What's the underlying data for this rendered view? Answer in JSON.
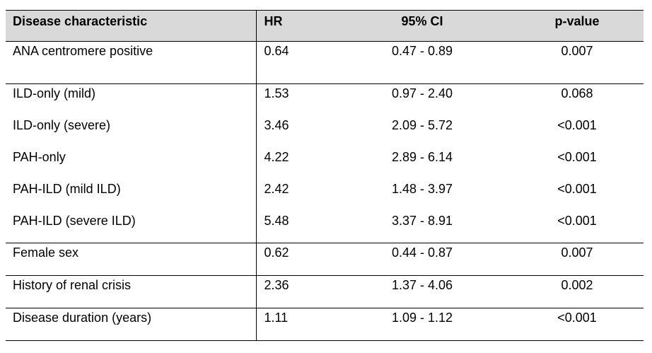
{
  "table": {
    "headers": {
      "characteristic": "Disease characteristic",
      "hr": "HR",
      "ci": "95% CI",
      "p": "p-value"
    },
    "rows": [
      {
        "characteristic": "ANA centromere positive",
        "hr": "0.64",
        "ci": "0.47 - 0.89",
        "p": "0.007"
      },
      {
        "characteristic": "ILD-only (mild)",
        "hr": "1.53",
        "ci": "0.97 - 2.40",
        "p": "0.068"
      },
      {
        "characteristic": "ILD-only (severe)",
        "hr": "3.46",
        "ci": "2.09 - 5.72",
        "p": "<0.001"
      },
      {
        "characteristic": "PAH-only",
        "hr": "4.22",
        "ci": "2.89 - 6.14",
        "p": "<0.001"
      },
      {
        "characteristic": "PAH-ILD (mild ILD)",
        "hr": "2.42",
        "ci": "1.48 - 3.97",
        "p": "<0.001"
      },
      {
        "characteristic": "PAH-ILD (severe ILD)",
        "hr": "5.48",
        "ci": "3.37 - 8.91",
        "p": "<0.001"
      },
      {
        "characteristic": "Female sex",
        "hr": "0.62",
        "ci": "0.44 - 0.87",
        "p": "0.007"
      },
      {
        "characteristic": "History of renal crisis",
        "hr": "2.36",
        "ci": "1.37 - 4.06",
        "p": "0.002"
      },
      {
        "characteristic": "Disease duration (years)",
        "hr": "1.11",
        "ci": "1.09 - 1.12",
        "p": "<0.001"
      }
    ]
  }
}
